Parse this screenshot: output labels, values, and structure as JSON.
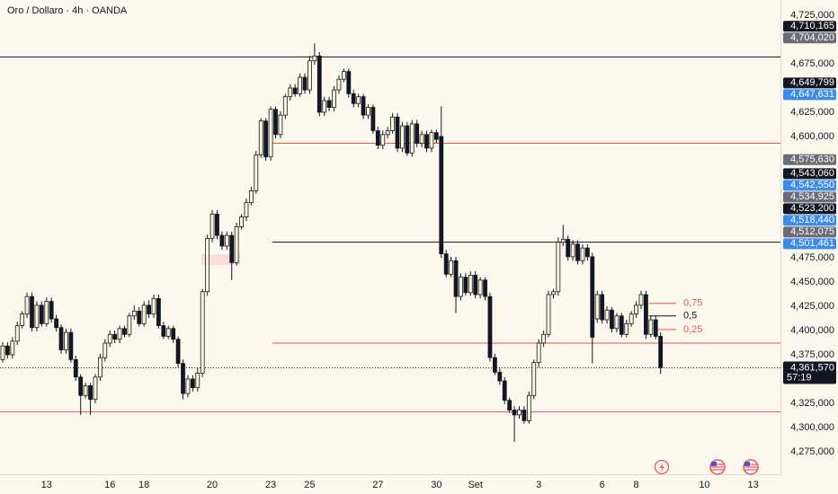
{
  "chart_data": {
    "type": "candlestick",
    "title": "Oro / Dollaro · 4h · OANDA",
    "up_color": "#fbf5dc",
    "down_color": "#131722",
    "wick_color": "#131722",
    "xlim": [
      -0.55,
      159.6
    ],
    "xticks": [
      {
        "value": 9,
        "label": "13"
      },
      {
        "value": 22,
        "label": "16"
      },
      {
        "value": 29,
        "label": "18"
      },
      {
        "value": 43,
        "label": "20"
      },
      {
        "value": 55,
        "label": "23"
      },
      {
        "value": 63,
        "label": "25"
      },
      {
        "value": 77,
        "label": "27"
      },
      {
        "value": 89,
        "label": "30"
      },
      {
        "value": 97,
        "label": "Set"
      },
      {
        "value": 110,
        "label": "3"
      },
      {
        "value": 123,
        "label": "6"
      },
      {
        "value": 130,
        "label": "8"
      },
      {
        "value": 144,
        "label": "10"
      },
      {
        "value": 154,
        "label": "13"
      }
    ],
    "ylim": [
      4251800,
      4740700
    ],
    "yticks": [
      {
        "value": 4725000,
        "label": "4,725,000"
      },
      {
        "value": 4675000,
        "label": "4,675,000"
      },
      {
        "value": 4625000,
        "label": "4,625,000"
      },
      {
        "value": 4600000,
        "label": "4,600,000"
      },
      {
        "value": 4475000,
        "label": "4,475,000"
      },
      {
        "value": 4450000,
        "label": "4,450,000"
      },
      {
        "value": 4425000,
        "label": "4,425,000"
      },
      {
        "value": 4400000,
        "label": "4,400,000"
      },
      {
        "value": 4375000,
        "label": "4,375,000"
      },
      {
        "value": 4325000,
        "label": "4,325,000"
      },
      {
        "value": 4300000,
        "label": "4,300,000"
      },
      {
        "value": 4275000,
        "label": "4,275,000"
      }
    ],
    "open": [
      4370000,
      4384000,
      4375000,
      4389000,
      4405000,
      4417000,
      4435000,
      4403000,
      4426000,
      4407000,
      4430000,
      4412000,
      4403000,
      4380000,
      4398000,
      4370000,
      4352000,
      4333000,
      4343000,
      4329000,
      4352000,
      4372000,
      4387000,
      4396000,
      4391000,
      4402000,
      4396000,
      4415000,
      4420000,
      4407000,
      4426000,
      4417000,
      4433000,
      4405000,
      4394000,
      4402000,
      4391000,
      4366000,
      4335000,
      4350000,
      4341000,
      4356000,
      4440000,
      4495000,
      4520000,
      4498000,
      4487000,
      4498000,
      4470000,
      4507000,
      4517000,
      4532000,
      4544000,
      4581000,
      4616000,
      4579000,
      4628000,
      4602000,
      4622000,
      4641000,
      4650000,
      4644000,
      4661000,
      4648000,
      4678000,
      4683000,
      4625000,
      4637000,
      4630000,
      4648000,
      4659000,
      4667000,
      4644000,
      4634000,
      4641000,
      4622000,
      4630000,
      4606000,
      4591000,
      4602000,
      4606000,
      4620000,
      4588000,
      4611000,
      4583000,
      4613000,
      4593000,
      4602000,
      4588000,
      4604000,
      4600000,
      4479000,
      4458000,
      4472000,
      4435000,
      4455000,
      4439000,
      4457000,
      4437000,
      4452000,
      4435000,
      4372000,
      4357000,
      4348000,
      4328000,
      4318000,
      4313000,
      4318000,
      4307000,
      4333000,
      4367000,
      4387000,
      4396000,
      4437000,
      4440000,
      4491000,
      4494000,
      4476000,
      4489000,
      4472000,
      4485000,
      4476000,
      4412000,
      4437000,
      4411000,
      4421000,
      4402000,
      4415000,
      4396000,
      4407000,
      4417000,
      4426000,
      4437000,
      4396000,
      4411000,
      4394000
    ],
    "high": [
      4388000,
      4388000,
      4393000,
      4409000,
      4420000,
      4439000,
      4439000,
      4430000,
      4430000,
      4434000,
      4434000,
      4416000,
      4406000,
      4402000,
      4402000,
      4374000,
      4355000,
      4346000,
      4346000,
      4355000,
      4376000,
      4391000,
      4400000,
      4400000,
      4405000,
      4405000,
      4418000,
      4426000,
      4424000,
      4430000,
      4431000,
      4437000,
      4437000,
      4409000,
      4405000,
      4405000,
      4394000,
      4370000,
      4354000,
      4354000,
      4361000,
      4443000,
      4499000,
      4524000,
      4524000,
      4502000,
      4502000,
      4502000,
      4511000,
      4520000,
      4536000,
      4548000,
      4585000,
      4619000,
      4619000,
      4631000,
      4631000,
      4626000,
      4644000,
      4654000,
      4654000,
      4665000,
      4665000,
      4683000,
      4696000,
      4687000,
      4641000,
      4641000,
      4652000,
      4663000,
      4670000,
      4670000,
      4648000,
      4644000,
      4644000,
      4633000,
      4633000,
      4610000,
      4606000,
      4610000,
      4624000,
      4624000,
      4615000,
      4615000,
      4617000,
      4617000,
      4606000,
      4606000,
      4607000,
      4607000,
      4631000,
      4483000,
      4476000,
      4476000,
      4459000,
      4459000,
      4461000,
      4461000,
      4455000,
      4455000,
      4439000,
      4376000,
      4361000,
      4352000,
      4331000,
      4322000,
      4322000,
      4322000,
      4337000,
      4370000,
      4391000,
      4400000,
      4441000,
      4443000,
      4496000,
      4509000,
      4498000,
      4493000,
      4493000,
      4489000,
      4489000,
      4480000,
      4441000,
      4441000,
      4425000,
      4424000,
      4418000,
      4418000,
      4411000,
      4420000,
      4430000,
      4441000,
      4441000,
      4415000,
      4415000,
      4398000
    ],
    "low": [
      4367000,
      4371000,
      4371000,
      4385000,
      4402000,
      4413000,
      4399000,
      4399000,
      4404000,
      4404000,
      4408000,
      4399000,
      4376000,
      4376000,
      4367000,
      4348000,
      4313000,
      4330000,
      4313000,
      4325000,
      4348000,
      4368000,
      4383000,
      4387000,
      4387000,
      4393000,
      4393000,
      4411000,
      4404000,
      4404000,
      4413000,
      4413000,
      4402000,
      4391000,
      4391000,
      4387000,
      4362000,
      4329000,
      4331000,
      4337000,
      4337000,
      4352000,
      4436000,
      4491000,
      4494000,
      4483000,
      4483000,
      4452000,
      4467000,
      4504000,
      4513000,
      4529000,
      4541000,
      4578000,
      4575000,
      4575000,
      4598000,
      4598000,
      4618000,
      4637000,
      4641000,
      4641000,
      4644000,
      4644000,
      4674000,
      4621000,
      4621000,
      4626000,
      4626000,
      4644000,
      4656000,
      4640000,
      4630000,
      4630000,
      4618000,
      4618000,
      4603000,
      4587000,
      4587000,
      4598000,
      4603000,
      4584000,
      4584000,
      4580000,
      4579000,
      4589000,
      4589000,
      4584000,
      4584000,
      4593000,
      4475000,
      4455000,
      4455000,
      4418000,
      4431000,
      4436000,
      4436000,
      4433000,
      4433000,
      4431000,
      4368000,
      4354000,
      4344000,
      4324000,
      4315000,
      4285000,
      4309000,
      4304000,
      4304000,
      4329000,
      4362000,
      4383000,
      4393000,
      4433000,
      4436000,
      4487000,
      4472000,
      4472000,
      4468000,
      4468000,
      4472000,
      4366000,
      4408000,
      4407000,
      4407000,
      4398000,
      4398000,
      4393000,
      4393000,
      4404000,
      4413000,
      4422000,
      4391000,
      4393000,
      4391000,
      4355000
    ],
    "close": [
      4384000,
      4375000,
      4389000,
      4405000,
      4417000,
      4435000,
      4403000,
      4426000,
      4407000,
      4430000,
      4412000,
      4403000,
      4380000,
      4398000,
      4370000,
      4352000,
      4333000,
      4343000,
      4329000,
      4352000,
      4372000,
      4387000,
      4396000,
      4391000,
      4402000,
      4396000,
      4415000,
      4420000,
      4407000,
      4426000,
      4417000,
      4433000,
      4405000,
      4394000,
      4402000,
      4391000,
      4366000,
      4335000,
      4350000,
      4341000,
      4356000,
      4440000,
      4495000,
      4520000,
      4498000,
      4487000,
      4498000,
      4470000,
      4507000,
      4517000,
      4532000,
      4544000,
      4581000,
      4616000,
      4579000,
      4628000,
      4602000,
      4622000,
      4641000,
      4650000,
      4644000,
      4661000,
      4648000,
      4678000,
      4683000,
      4625000,
      4637000,
      4630000,
      4648000,
      4659000,
      4667000,
      4644000,
      4634000,
      4641000,
      4622000,
      4630000,
      4606000,
      4591000,
      4602000,
      4606000,
      4620000,
      4588000,
      4611000,
      4583000,
      4613000,
      4593000,
      4602000,
      4588000,
      4604000,
      4597000,
      4479000,
      4458000,
      4472000,
      4435000,
      4455000,
      4439000,
      4457000,
      4437000,
      4452000,
      4435000,
      4372000,
      4357000,
      4348000,
      4328000,
      4318000,
      4313000,
      4318000,
      4307000,
      4333000,
      4367000,
      4387000,
      4396000,
      4437000,
      4440000,
      4491000,
      4494000,
      4476000,
      4489000,
      4472000,
      4485000,
      4476000,
      4393000,
      4437000,
      4411000,
      4421000,
      4402000,
      4415000,
      4396000,
      4407000,
      4417000,
      4426000,
      4437000,
      4396000,
      4411000,
      4394000,
      4361570
    ],
    "levels": [
      {
        "value": 4682000,
        "color": "#131722"
      },
      {
        "value": 4593000,
        "color": "#ef5350",
        "start": 55.3
      },
      {
        "value": 4491000,
        "color": "#131722",
        "start": 55.3
      },
      {
        "value": 4387000,
        "color": "#ef5350",
        "start": 55.3
      },
      {
        "value": 4316000,
        "color": "#ef5350"
      }
    ],
    "fib": [
      {
        "value": 4428000,
        "label": "0,75",
        "color": "#ef5350",
        "start": 132.6,
        "end": 138.2
      },
      {
        "value": 4415000,
        "label": "0,5",
        "color": "#131722",
        "start": 132.6,
        "end": 138.2
      },
      {
        "value": 4401000,
        "label": "0,25",
        "color": "#ef5350",
        "start": 132.6,
        "end": 138.2
      }
    ],
    "price_tags": [
      {
        "value": 4710165,
        "label": "4,710,165",
        "color": "#131722"
      },
      {
        "value": 4704020,
        "label": "4,704,020",
        "color": "#6a6d78"
      },
      {
        "value": 4649799,
        "label": "4,649,799",
        "color": "#131722"
      },
      {
        "value": 4647631,
        "label": "4,647,631",
        "color": "#3b8beb"
      },
      {
        "value": 4575630,
        "label": "4,575,630",
        "color": "#6a6d78"
      },
      {
        "value": 4543060,
        "label": "4,543,060",
        "color": "#131722"
      },
      {
        "value": 4542550,
        "label": "4,542,550",
        "color": "#3b8beb"
      },
      {
        "value": 4534925,
        "label": "4,534,925",
        "color": "#6a6d78"
      },
      {
        "value": 4523200,
        "label": "4,523,200",
        "color": "#131722"
      },
      {
        "value": 4518440,
        "label": "4,518,440",
        "color": "#3b8beb"
      },
      {
        "value": 4512075,
        "label": "4,512,075",
        "color": "#6a6d78"
      },
      {
        "value": 4501461,
        "label": "4,501,461",
        "color": "#3b8beb"
      }
    ],
    "current": {
      "value": 4361570,
      "label": "4,361,570",
      "countdown": "57:19",
      "color": "#131722"
    }
  }
}
